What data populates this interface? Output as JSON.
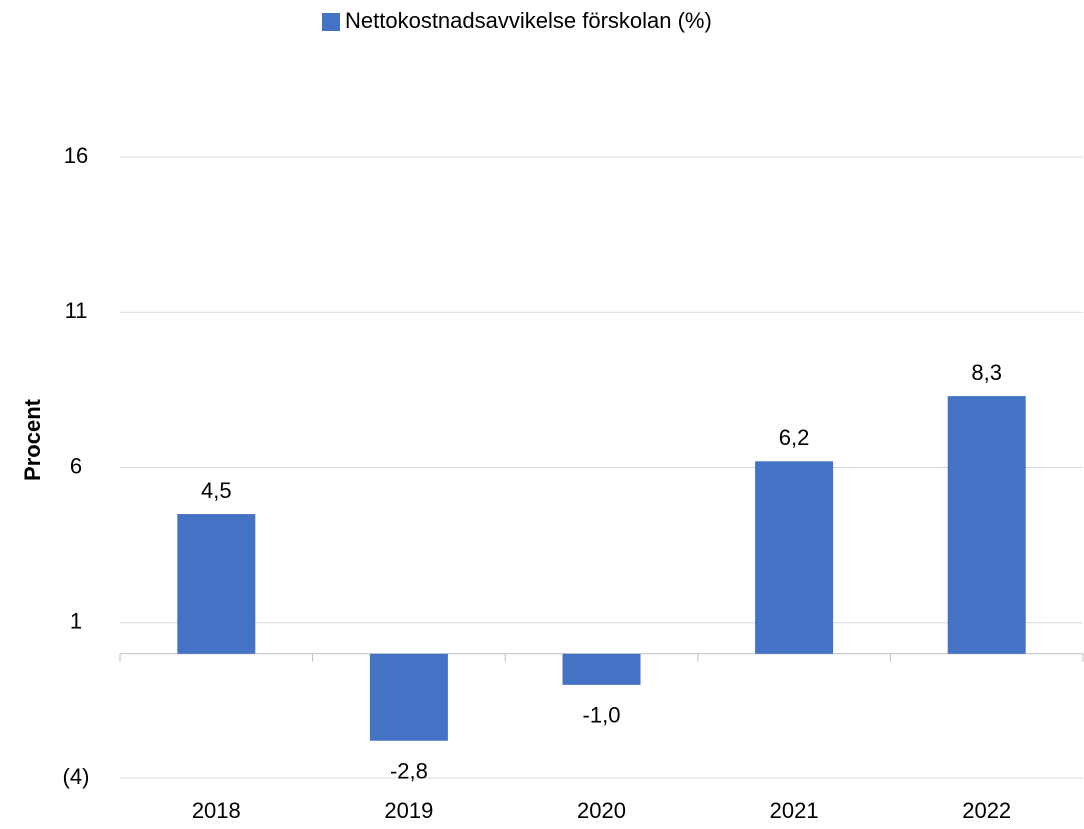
{
  "chart_data": {
    "type": "bar",
    "legend": "Nettokostnadsavvikelse förskolan (%)",
    "ylabel": "Procent",
    "categories": [
      "2018",
      "2019",
      "2020",
      "2021",
      "2022"
    ],
    "values": [
      4.5,
      -2.8,
      -1.0,
      6.2,
      8.3
    ],
    "value_labels": [
      "4,5",
      "-2,8",
      "-1,0",
      "6,2",
      "8,3"
    ],
    "color": "#4472c4",
    "ylim": [
      -4,
      16
    ],
    "yticks": [
      {
        "value": -4,
        "label": "(4)"
      },
      1,
      6,
      11,
      16
    ],
    "grid": true
  }
}
